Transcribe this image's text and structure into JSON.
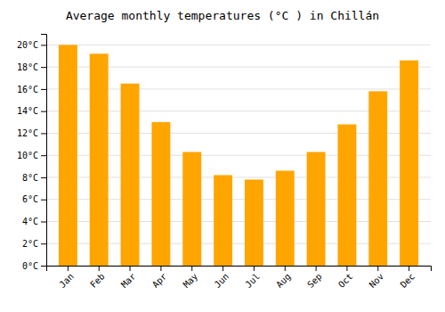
{
  "chart_data": {
    "type": "bar",
    "title": "Average monthly temperatures (°C ) in Chillán",
    "categories": [
      "Jan",
      "Feb",
      "Mar",
      "Apr",
      "May",
      "Jun",
      "Jul",
      "Aug",
      "Sep",
      "Oct",
      "Nov",
      "Dec"
    ],
    "values": [
      20.0,
      19.2,
      16.5,
      13.0,
      10.3,
      8.2,
      7.8,
      8.6,
      10.3,
      12.8,
      15.8,
      18.6
    ],
    "color": "#FFA500",
    "ylim": [
      0,
      21
    ],
    "yticks": [
      {
        "value": 0,
        "label": "0°C"
      },
      {
        "value": 2,
        "label": "2°C"
      },
      {
        "value": 4,
        "label": "4°C"
      },
      {
        "value": 6,
        "label": "6°C"
      },
      {
        "value": 8,
        "label": "8°C"
      },
      {
        "value": 10,
        "label": "10°C"
      },
      {
        "value": 12,
        "label": "12°C"
      },
      {
        "value": 14,
        "label": "14°C"
      },
      {
        "value": 16,
        "label": "16°C"
      },
      {
        "value": 18,
        "label": "18°C"
      },
      {
        "value": 20,
        "label": "20°C"
      }
    ],
    "grid": true
  }
}
